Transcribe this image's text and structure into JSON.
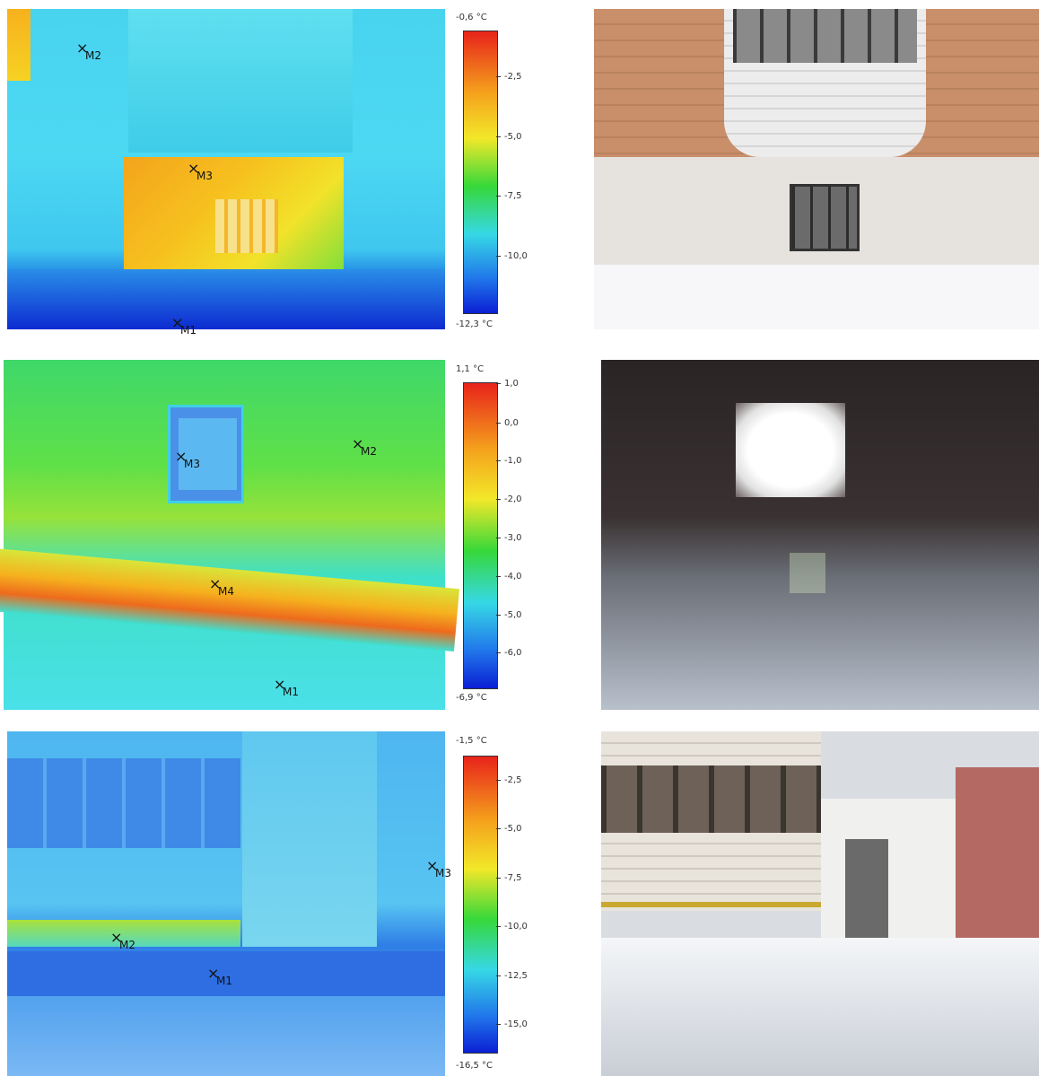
{
  "rows": [
    {
      "scale": {
        "max": "-0,6 °C",
        "min": "-12,3 °C",
        "ticks": [
          "-2,5",
          "-5,0",
          "-7,5",
          "-10,0"
        ]
      },
      "markers": [
        "M2",
        "M3",
        "M1"
      ]
    },
    {
      "scale": {
        "max": "1,1 °C",
        "min": "-6,9 °C",
        "ticks": [
          "1,0",
          "0,0",
          "-1,0",
          "-2,0",
          "-3,0",
          "-4,0",
          "-5,0",
          "-6,0"
        ]
      },
      "markers": [
        "M3",
        "M2",
        "M4",
        "M1"
      ]
    },
    {
      "scale": {
        "max": "-1,5 °C",
        "min": "-16,5 °C",
        "ticks": [
          "-2,5",
          "-5,0",
          "-7,5",
          "-10,0",
          "-12,5",
          "-15,0"
        ]
      },
      "markers": [
        "M3",
        "M2",
        "M1"
      ]
    }
  ],
  "colors": {
    "scale_gradient": [
      "#e8231b",
      "#f5a31c",
      "#f2e829",
      "#36d83a",
      "#36d8e6",
      "#2074ea",
      "#0b1fd4"
    ]
  }
}
